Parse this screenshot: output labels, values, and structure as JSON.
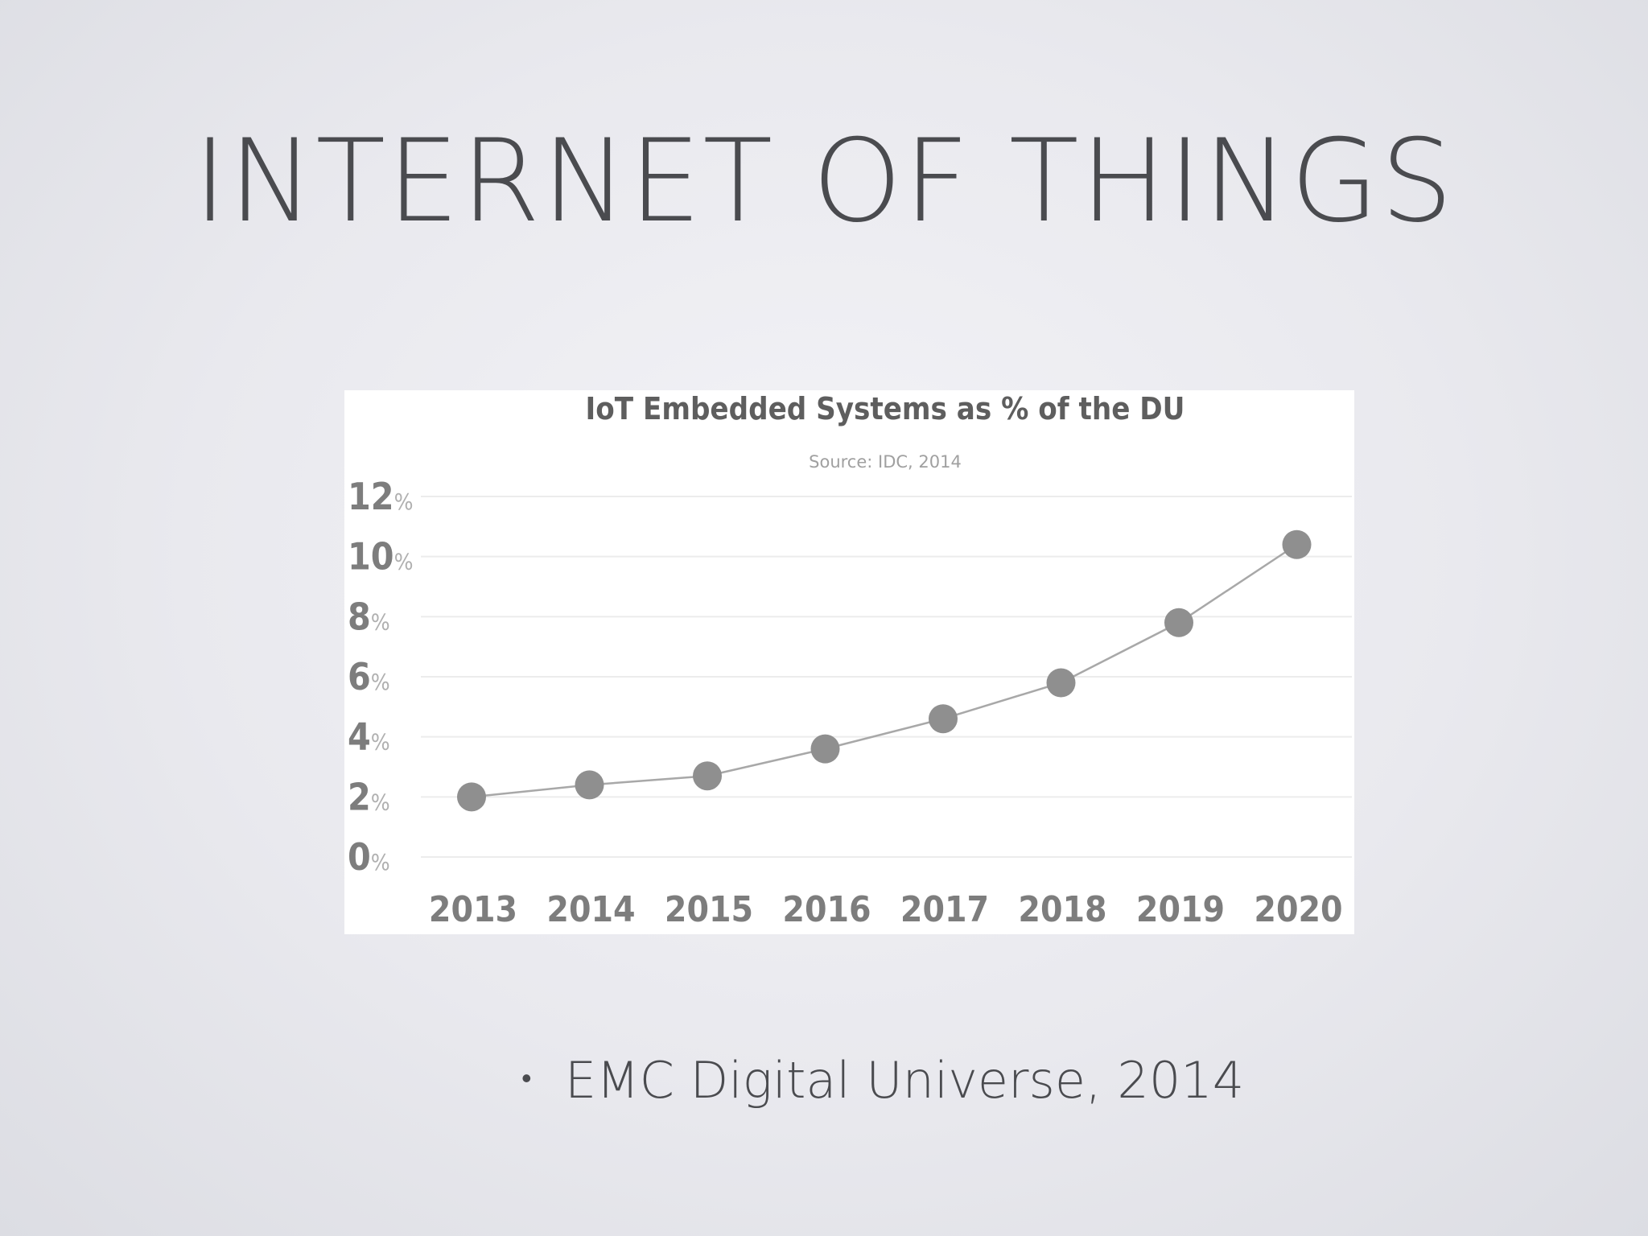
{
  "slide": {
    "title": "INTERNET OF THINGS",
    "bullets": [
      {
        "marker": "•",
        "text": "EMC Digital Universe, 2014"
      }
    ]
  },
  "chart_data": {
    "type": "line",
    "title": "IoT Embedded Systems as % of the DU",
    "subtitle": "Source: IDC, 2014",
    "xlabel": "",
    "ylabel": "",
    "categories": [
      "2013",
      "2014",
      "2015",
      "2016",
      "2017",
      "2018",
      "2019",
      "2020"
    ],
    "series": [
      {
        "values": [
          2,
          2.4,
          2.7,
          3.6,
          4.6,
          5.8,
          7.8,
          10.4
        ]
      }
    ],
    "ylim": [
      0,
      12
    ],
    "yticks": [
      {
        "value": 12,
        "num": "12",
        "unit": "%"
      },
      {
        "value": 10,
        "num": "10",
        "unit": "%"
      },
      {
        "value": 8,
        "num": "8",
        "unit": "%"
      },
      {
        "value": 6,
        "num": "6",
        "unit": "%"
      },
      {
        "value": 4,
        "num": "4",
        "unit": "%"
      },
      {
        "value": 2,
        "num": "2",
        "unit": "%"
      },
      {
        "value": 0,
        "num": "0",
        "unit": "%"
      }
    ],
    "grid": true,
    "legend": "none",
    "colors": {
      "marker": "#8f8f8f",
      "line": "#a8a8a8",
      "grid": "#ececec",
      "title": "#5e5e5e",
      "subtitle": "#a0a0a0",
      "tick": "#7d7d7d",
      "unit": "#b0b0b0"
    }
  }
}
